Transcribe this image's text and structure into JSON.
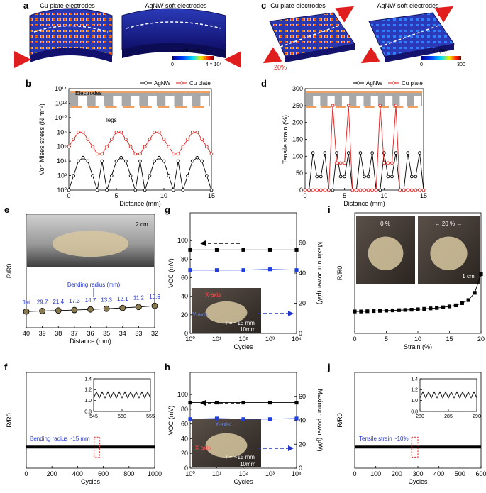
{
  "panels": [
    {
      "label": "a",
      "titles": [
        "Cu plate electrodes",
        "AgNW soft electrodes"
      ],
      "colorbar_label": "σvm (N m⁻²)",
      "colorbar_ticks": [
        "0",
        "4 × 10⁸"
      ]
    },
    {
      "label": "c",
      "titles": [
        "Cu plate electrodes",
        "AgNW soft electrodes"
      ],
      "colorbar_label": "εs (%)",
      "colorbar_ticks": [
        "0",
        "300"
      ],
      "strain_label": "20%"
    }
  ],
  "chart_data": [
    {
      "type": "line",
      "label": "b",
      "xlabel": "Distance (mm)",
      "ylabel": "Von Mises stress (N m⁻²)",
      "x": [
        0,
        0.5,
        1,
        1.5,
        2,
        2.5,
        3,
        3.5,
        4,
        4.5,
        5,
        5.5,
        6,
        6.5,
        7,
        7.5,
        8,
        8.5,
        9,
        9.5,
        10,
        10.5,
        11,
        11.5,
        12,
        12.5,
        13,
        13.5,
        14,
        14.5,
        15
      ],
      "xlim": [
        0,
        15
      ],
      "xticks": [
        0,
        5,
        10,
        15
      ],
      "ylog": true,
      "ylim": [
        1,
        100000000000000
      ],
      "yticks": [
        {
          "value": 1,
          "label": "10⁰"
        },
        {
          "value": 100,
          "label": "10²"
        },
        {
          "value": 10000,
          "label": "10⁴"
        },
        {
          "value": 1000000,
          "label": "10⁶"
        },
        {
          "value": 100000000,
          "label": "10⁸"
        },
        {
          "value": 10000000000,
          "label": "10¹⁰"
        },
        {
          "value": 1000000000000,
          "label": "10¹²"
        },
        {
          "value": 100000000000000,
          "label": "10¹⁴"
        }
      ],
      "legend": "top-right",
      "series": [
        {
          "name": "AgNW",
          "color": "#000000",
          "marker": "circle",
          "values": [
            1,
            100,
            10000,
            30000,
            10000,
            100,
            1,
            10000,
            1,
            100,
            10000,
            30000,
            10000,
            100,
            1,
            10000,
            1,
            100,
            10000,
            30000,
            10000,
            100,
            1,
            10000,
            1,
            100,
            10000,
            30000,
            10000,
            100,
            1
          ]
        },
        {
          "name": "Cu plate",
          "color": "#e01e1e",
          "marker": "circle",
          "values": [
            1000000,
            10000000,
            100000000,
            100000000,
            10000000,
            1000000,
            100000,
            100000,
            1000000,
            10000000,
            100000000,
            100000000,
            10000000,
            1000000,
            100000,
            100000,
            1000000,
            10000000,
            100000000,
            100000000,
            10000000,
            1000000,
            100000,
            100000,
            1000000,
            10000000,
            100000000,
            100000000,
            10000000,
            1000000,
            100000
          ]
        }
      ],
      "inset_texts": [
        "Electrodes",
        "legs"
      ]
    },
    {
      "type": "line",
      "label": "d",
      "xlabel": "Distance (mm)",
      "ylabel": "Tensile strain (%)",
      "x": [
        0,
        0.5,
        1,
        1.5,
        2,
        2.5,
        3,
        3.5,
        4,
        4.5,
        5,
        5.5,
        6,
        6.5,
        7,
        7.5,
        8,
        8.5,
        9,
        9.5,
        10,
        10.5,
        11,
        11.5,
        12,
        12.5,
        13,
        13.5,
        14,
        14.5,
        15
      ],
      "xlim": [
        0,
        15
      ],
      "xticks": [
        0,
        5,
        10,
        15
      ],
      "ylim": [
        0,
        300
      ],
      "yticks": [
        0,
        50,
        100,
        150,
        200,
        250,
        300
      ],
      "legend": "top-right",
      "series": [
        {
          "name": "AgNW",
          "color": "#000000",
          "marker": "circle",
          "values": [
            0,
            0,
            110,
            40,
            40,
            110,
            0,
            0,
            110,
            40,
            40,
            110,
            0,
            0,
            110,
            40,
            40,
            110,
            0,
            0,
            110,
            40,
            40,
            110,
            0,
            0,
            110,
            40,
            40,
            110,
            0
          ]
        },
        {
          "name": "Cu plate",
          "color": "#e01e1e",
          "marker": "circle",
          "values": [
            0,
            0,
            0,
            0,
            0,
            0,
            0,
            250,
            80,
            80,
            80,
            250,
            0,
            0,
            0,
            0,
            0,
            0,
            0,
            250,
            80,
            80,
            80,
            250,
            0,
            0,
            0,
            0,
            0,
            0,
            0
          ]
        }
      ]
    },
    {
      "type": "line",
      "label": "e",
      "xlabel": "Distance (mm)",
      "ylabel": "R/R0",
      "x": [
        40,
        39,
        38,
        37,
        36,
        35,
        34,
        33,
        32
      ],
      "xlim": [
        40,
        32
      ],
      "xticks": [
        40,
        39,
        38,
        37,
        36,
        35,
        34,
        33,
        32
      ],
      "ylim": [
        0,
        7
      ],
      "series": [
        {
          "color": "#000000",
          "marker": "sphere",
          "values": [
            1,
            1.03,
            1.06,
            1.09,
            1.13,
            1.17,
            1.22,
            1.28,
            1.35
          ]
        }
      ],
      "point_labels": [
        "flat",
        "29.7",
        "21.4",
        "17.3",
        "14.7",
        "13.3",
        "12.1",
        "11.2",
        "10.6"
      ],
      "point_labels_title": "Bending radius (mm)",
      "inset_texts": [
        "2 cm"
      ]
    },
    {
      "type": "line",
      "label": "f",
      "xlabel": "Cycles",
      "ylabel": "R/R0",
      "x": [
        0,
        100,
        200,
        300,
        400,
        500,
        600,
        700,
        800,
        900,
        1000
      ],
      "xlim": [
        0,
        1000
      ],
      "xticks": [
        0,
        200,
        400,
        600,
        800,
        1000
      ],
      "ylim": [
        0,
        5
      ],
      "series": [
        {
          "color": "#000000",
          "marker": "none",
          "width": 4,
          "values": [
            1.1,
            1.1,
            1.1,
            1.1,
            1.1,
            1.1,
            1.1,
            1.1,
            1.1,
            1.1,
            1.1
          ]
        }
      ],
      "annotation": "Bending radius ~15 mm",
      "inset": {
        "x": [
          545,
          545.5,
          546,
          546.5,
          547,
          547.5,
          548,
          548.5,
          549,
          549.5,
          550,
          550.5,
          551,
          551.5,
          552,
          552.5,
          553,
          553.5,
          554,
          554.5,
          555
        ],
        "xlim": [
          545,
          555
        ],
        "xticks": [
          545,
          550,
          555
        ],
        "ylim": [
          0.8,
          1.4
        ],
        "yticks": [
          0.8,
          {
            "value": 1,
            "label": "1.0"
          },
          1.2,
          1.4
        ],
        "series": [
          {
            "color": "#000000",
            "marker": "none",
            "values": [
              1.05,
              1.16,
              1.05,
              1.16,
              1.05,
              1.16,
              1.05,
              1.16,
              1.05,
              1.16,
              1.05,
              1.16,
              1.05,
              1.16,
              1.05,
              1.16,
              1.05,
              1.16,
              1.05,
              1.16,
              1.05
            ]
          }
        ]
      }
    },
    {
      "type": "line",
      "label": "g",
      "xlabel": "Cycles",
      "ylabel": "VOC (mV)",
      "y2label": "Maximum power (µW)",
      "x": [
        1,
        10,
        100,
        1000,
        10000
      ],
      "xlog": true,
      "xlim": [
        1,
        10000
      ],
      "xticks": [
        {
          "value": 1,
          "label": "10⁰"
        },
        {
          "value": 10,
          "label": "10¹"
        },
        {
          "value": 100,
          "label": "10²"
        },
        {
          "value": 1000,
          "label": "10³"
        },
        {
          "value": 10000,
          "label": "10⁴"
        }
      ],
      "ylim": [
        0,
        130
      ],
      "yticks": [
        0,
        20,
        40,
        60,
        80,
        100
      ],
      "y2lim": [
        0,
        80
      ],
      "y2ticks": [
        0,
        20,
        40,
        60
      ],
      "series": [
        {
          "color": "#000000",
          "marker": "square",
          "values": [
            90,
            90,
            90,
            90,
            90
          ]
        },
        {
          "color": "#1f3fe0",
          "marker": "square",
          "axis": "y2",
          "values": [
            42,
            42,
            42,
            42.5,
            42
          ]
        }
      ],
      "inset_texts": [
        "X-axis",
        "Y-axis",
        "r = ~15 mm",
        "10mm"
      ]
    },
    {
      "type": "line",
      "label": "h",
      "xlabel": "Cycles",
      "ylabel": "VOC (mV)",
      "y2label": "Maximum power (µW)",
      "x": [
        1,
        10,
        100,
        1000,
        10000
      ],
      "xlog": true,
      "xlim": [
        1,
        10000
      ],
      "xticks": [
        {
          "value": 1,
          "label": "10⁰"
        },
        {
          "value": 10,
          "label": "10¹"
        },
        {
          "value": 100,
          "label": "10²"
        },
        {
          "value": 1000,
          "label": "10³"
        },
        {
          "value": 10000,
          "label": "10⁴"
        }
      ],
      "ylim": [
        0,
        130
      ],
      "yticks": [
        0,
        20,
        40,
        60,
        80,
        100
      ],
      "y2lim": [
        0,
        80
      ],
      "y2ticks": [
        0,
        20,
        40,
        60
      ],
      "series": [
        {
          "color": "#000000",
          "marker": "square",
          "values": [
            89,
            89,
            89,
            89,
            89
          ]
        },
        {
          "color": "#1f3fe0",
          "marker": "square",
          "axis": "y2",
          "values": [
            41,
            41.5,
            41,
            41,
            41.5
          ]
        }
      ],
      "inset_texts": [
        "Y-axis",
        "X-axis",
        "r = ~15 mm",
        "10mm"
      ]
    },
    {
      "type": "line",
      "label": "i",
      "xlabel": "Strain (%)",
      "ylabel": "R/R0",
      "x": [
        0,
        1,
        2,
        3,
        4,
        5,
        6,
        7,
        8,
        9,
        10,
        11,
        12,
        13,
        14,
        15,
        16,
        17,
        18,
        19,
        20
      ],
      "xlim": [
        0,
        20
      ],
      "xticks": [
        0,
        5,
        10,
        15,
        20
      ],
      "ylim": [
        0,
        5.5
      ],
      "series": [
        {
          "color": "#000000",
          "marker": "square",
          "values": [
            1,
            1,
            1.01,
            1.02,
            1.03,
            1.04,
            1.05,
            1.06,
            1.07,
            1.08,
            1.1,
            1.12,
            1.14,
            1.16,
            1.19,
            1.23,
            1.28,
            1.38,
            1.52,
            1.85,
            2.7
          ]
        }
      ],
      "inset_texts": [
        "0 %",
        "← 20 % →",
        "1 cm"
      ]
    },
    {
      "type": "line",
      "label": "j",
      "xlabel": "Cycles",
      "ylabel": "R/R0",
      "x": [
        0,
        100,
        200,
        300,
        400,
        500,
        600
      ],
      "xlim": [
        0,
        600
      ],
      "xticks": [
        0,
        100,
        200,
        300,
        400,
        500,
        600
      ],
      "ylim": [
        0,
        5
      ],
      "series": [
        {
          "color": "#000000",
          "marker": "none",
          "width": 4,
          "values": [
            1.1,
            1.1,
            1.1,
            1.1,
            1.1,
            1.1,
            1.1
          ]
        }
      ],
      "annotation": "Tensile strain ~10%",
      "inset": {
        "x": [
          280,
          280.5,
          281,
          281.5,
          282,
          282.5,
          283,
          283.5,
          284,
          284.5,
          285,
          285.5,
          286,
          286.5,
          287,
          287.5,
          288,
          288.5,
          289,
          289.5,
          290
        ],
        "xlim": [
          280,
          290
        ],
        "xticks": [
          280,
          285,
          290
        ],
        "ylim": [
          0.8,
          1.4
        ],
        "yticks": [
          0.8,
          {
            "value": 1,
            "label": "1.0"
          },
          1.2,
          1.4
        ],
        "series": [
          {
            "color": "#000000",
            "marker": "none",
            "values": [
              1.05,
              1.16,
              1.05,
              1.16,
              1.05,
              1.16,
              1.05,
              1.16,
              1.05,
              1.16,
              1.05,
              1.16,
              1.05,
              1.16,
              1.05,
              1.16,
              1.05,
              1.16,
              1.05,
              1.16,
              1.05
            ]
          }
        ]
      }
    }
  ]
}
